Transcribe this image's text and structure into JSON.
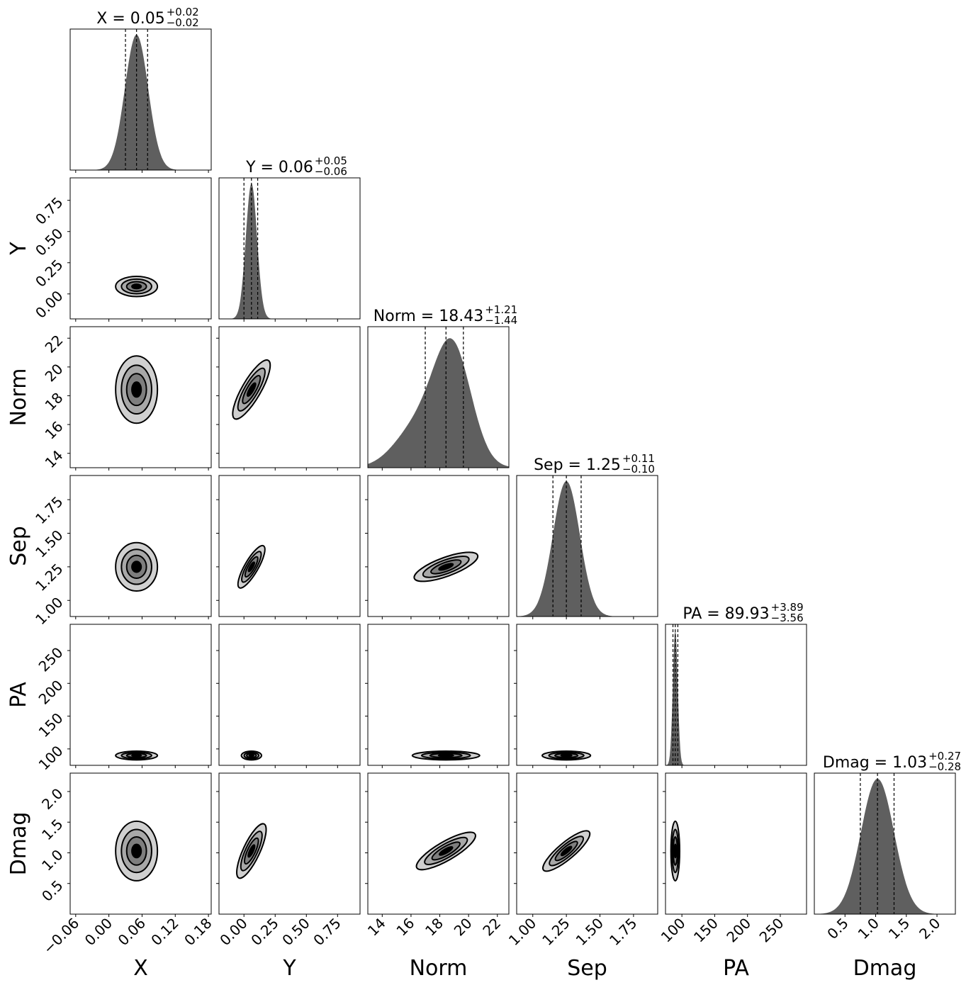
{
  "chart_data": {
    "type": "corner",
    "colors": {
      "hist_fill": "#5f5f5f",
      "contour_levels": [
        "#d0d0d0",
        "#a8a8a8",
        "#7e7e7e",
        "#000000"
      ],
      "line": "#000000"
    },
    "parameters": [
      {
        "name": "X",
        "range": [
          -0.07,
          0.185
        ],
        "ticks": [
          "−0.06",
          "0.00",
          "0.06",
          "0.12",
          "0.18"
        ],
        "tick_values": [
          -0.06,
          0.0,
          0.06,
          0.12,
          0.18
        ],
        "title_prefix": "X = 0.05",
        "title_plus": "+0.02",
        "title_minus": "−0.02",
        "median": 0.05,
        "q16": 0.03,
        "q84": 0.07,
        "hist_mu": 0.05,
        "hist_sigma": 0.021
      },
      {
        "name": "Y",
        "range": [
          -0.2,
          0.93
        ],
        "ticks": [
          "0.00",
          "0.25",
          "0.50",
          "0.75"
        ],
        "tick_values": [
          0.0,
          0.25,
          0.5,
          0.75
        ],
        "title_prefix": "Y = 0.06",
        "title_plus": "+0.05",
        "title_minus": "−0.06",
        "median": 0.06,
        "q16": 0.0,
        "q84": 0.11,
        "hist_mu": 0.06,
        "hist_sigma": 0.045
      },
      {
        "name": "Norm",
        "range": [
          13.0,
          22.8
        ],
        "ticks": [
          "14",
          "16",
          "18",
          "20",
          "22"
        ],
        "tick_values": [
          14,
          16,
          18,
          20,
          22
        ],
        "title_prefix": "Norm = 18.43",
        "title_plus": "+1.21",
        "title_minus": "−1.44",
        "median": 18.43,
        "q16": 16.99,
        "q84": 19.64,
        "hist_mu": 18.6,
        "hist_sigma": 1.3
      },
      {
        "name": "Sep",
        "range": [
          0.88,
          1.93
        ],
        "ticks": [
          "1.00",
          "1.25",
          "1.50",
          "1.75"
        ],
        "tick_values": [
          1.0,
          1.25,
          1.5,
          1.75
        ],
        "title_prefix": "Sep = 1.25",
        "title_plus": "+0.11",
        "title_minus": "−0.10",
        "median": 1.25,
        "q16": 1.15,
        "q84": 1.36,
        "hist_mu": 1.25,
        "hist_sigma": 0.1
      },
      {
        "name": "PA",
        "range": [
          75,
          290
        ],
        "ticks": [
          "100",
          "150",
          "200",
          "250"
        ],
        "tick_values": [
          100,
          150,
          200,
          250
        ],
        "title_prefix": "PA = 89.93",
        "title_plus": "+3.89",
        "title_minus": "−3.56",
        "median": 89.93,
        "q16": 86.37,
        "q84": 93.82,
        "hist_mu": 89.93,
        "hist_sigma": 3.7
      },
      {
        "name": "Dmag",
        "range": [
          0.0,
          2.3
        ],
        "ticks": [
          "0.5",
          "1.0",
          "1.5",
          "2.0"
        ],
        "tick_values": [
          0.5,
          1.0,
          1.5,
          2.0
        ],
        "title_prefix": "Dmag = 1.03",
        "title_plus": "+0.27",
        "title_minus": "−0.28",
        "median": 1.03,
        "q16": 0.75,
        "q84": 1.3,
        "hist_mu": 1.03,
        "hist_sigma": 0.27
      }
    ]
  }
}
